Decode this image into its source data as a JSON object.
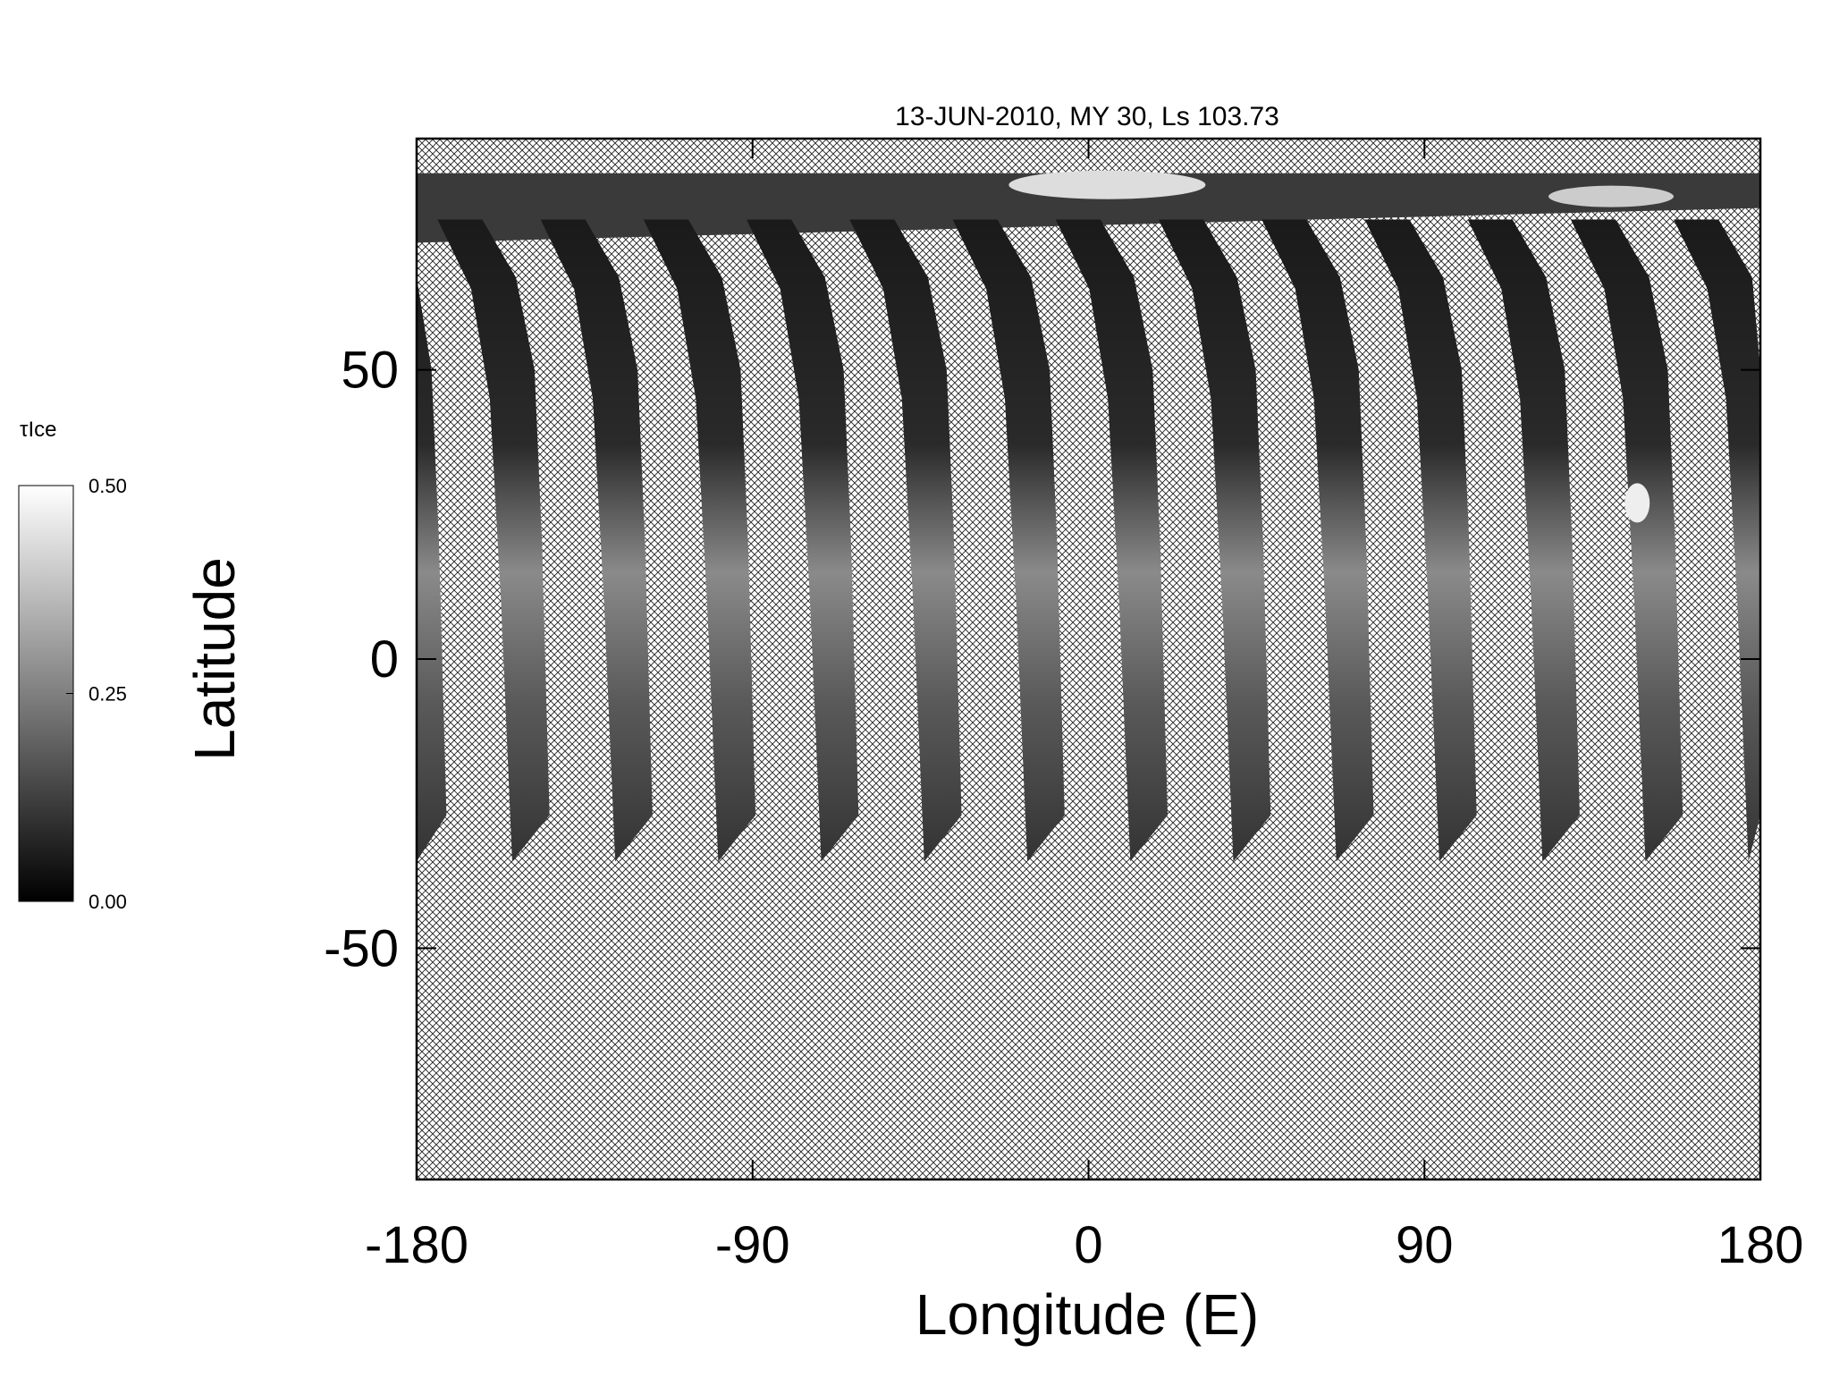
{
  "chart_data": {
    "type": "map",
    "title": "13-JUN-2010, MY 30,  Ls 103.73",
    "xlabel": "Longitude (E)",
    "ylabel": "Latitude",
    "xlim": [
      -180,
      180
    ],
    "ylim": [
      -90,
      90
    ],
    "xticks": [
      -180,
      -90,
      0,
      90,
      180
    ],
    "yticks": [
      -50,
      0,
      50
    ],
    "colorbar": {
      "label": "τIce",
      "range": [
        0,
        0.5
      ],
      "ticks": [
        {
          "value": 0,
          "label": "0.00"
        },
        {
          "value": 0.25,
          "label": "0.25"
        },
        {
          "value": 0.5,
          "label": "0.50"
        }
      ]
    }
  }
}
